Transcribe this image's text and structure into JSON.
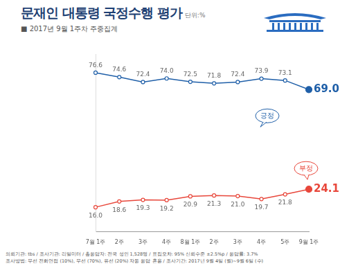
{
  "chart_data": {
    "type": "line",
    "title": "문재인 대통령 국정수행 평가",
    "unit_label": "단위:%",
    "subtitle": "■ 2017년 9월 1주차 주중집계",
    "categories": [
      "7월 1주",
      "2주",
      "3주",
      "4주",
      "8월 1주",
      "2주",
      "3주",
      "4주",
      "5주",
      "9월 1주"
    ],
    "series": [
      {
        "name": "긍정",
        "color": "#1f5fa8",
        "marker": "circle",
        "line_style": "solid",
        "values": [
          76.6,
          74.6,
          72.4,
          74.0,
          72.5,
          71.8,
          72.4,
          73.9,
          73.1,
          69.0
        ],
        "value_labels": [
          "76.6",
          "74.6",
          "72.4",
          "74.0",
          "72.5",
          "71.8",
          "72.4",
          "73.9",
          "73.1",
          "69.0"
        ]
      },
      {
        "name": "부정",
        "color": "#e8473b",
        "marker": "circle",
        "line_style": "solid",
        "values": [
          16.0,
          18.6,
          19.3,
          19.2,
          20.9,
          21.3,
          21.0,
          19.7,
          21.8,
          24.1
        ],
        "value_labels": [
          "16.0",
          "18.6",
          "19.3",
          "19.2",
          "20.9",
          "21.3",
          "21.0",
          "19.7",
          "21.8",
          "24.1"
        ]
      }
    ],
    "ylim": [
      5,
      85
    ],
    "yticks": [],
    "grid": false,
    "legend": false,
    "data_labels": true,
    "tick_labels": "x",
    "notes": [
      "의뢰기관: tbs / 조사기관: 리얼미터 / 총응답자: 전국 성인 1,528명 / 표집오차: 95% 신뢰수준 ±2.5%p / 응답률: 3.7%",
      "조사방법: 무선 전화면접 (10%), 무선 (70%), 유선 (20%) 자동 응답 혼용 / 조사기간: 2017년 9월 4일 (월)~9월 6일 (수)"
    ]
  }
}
